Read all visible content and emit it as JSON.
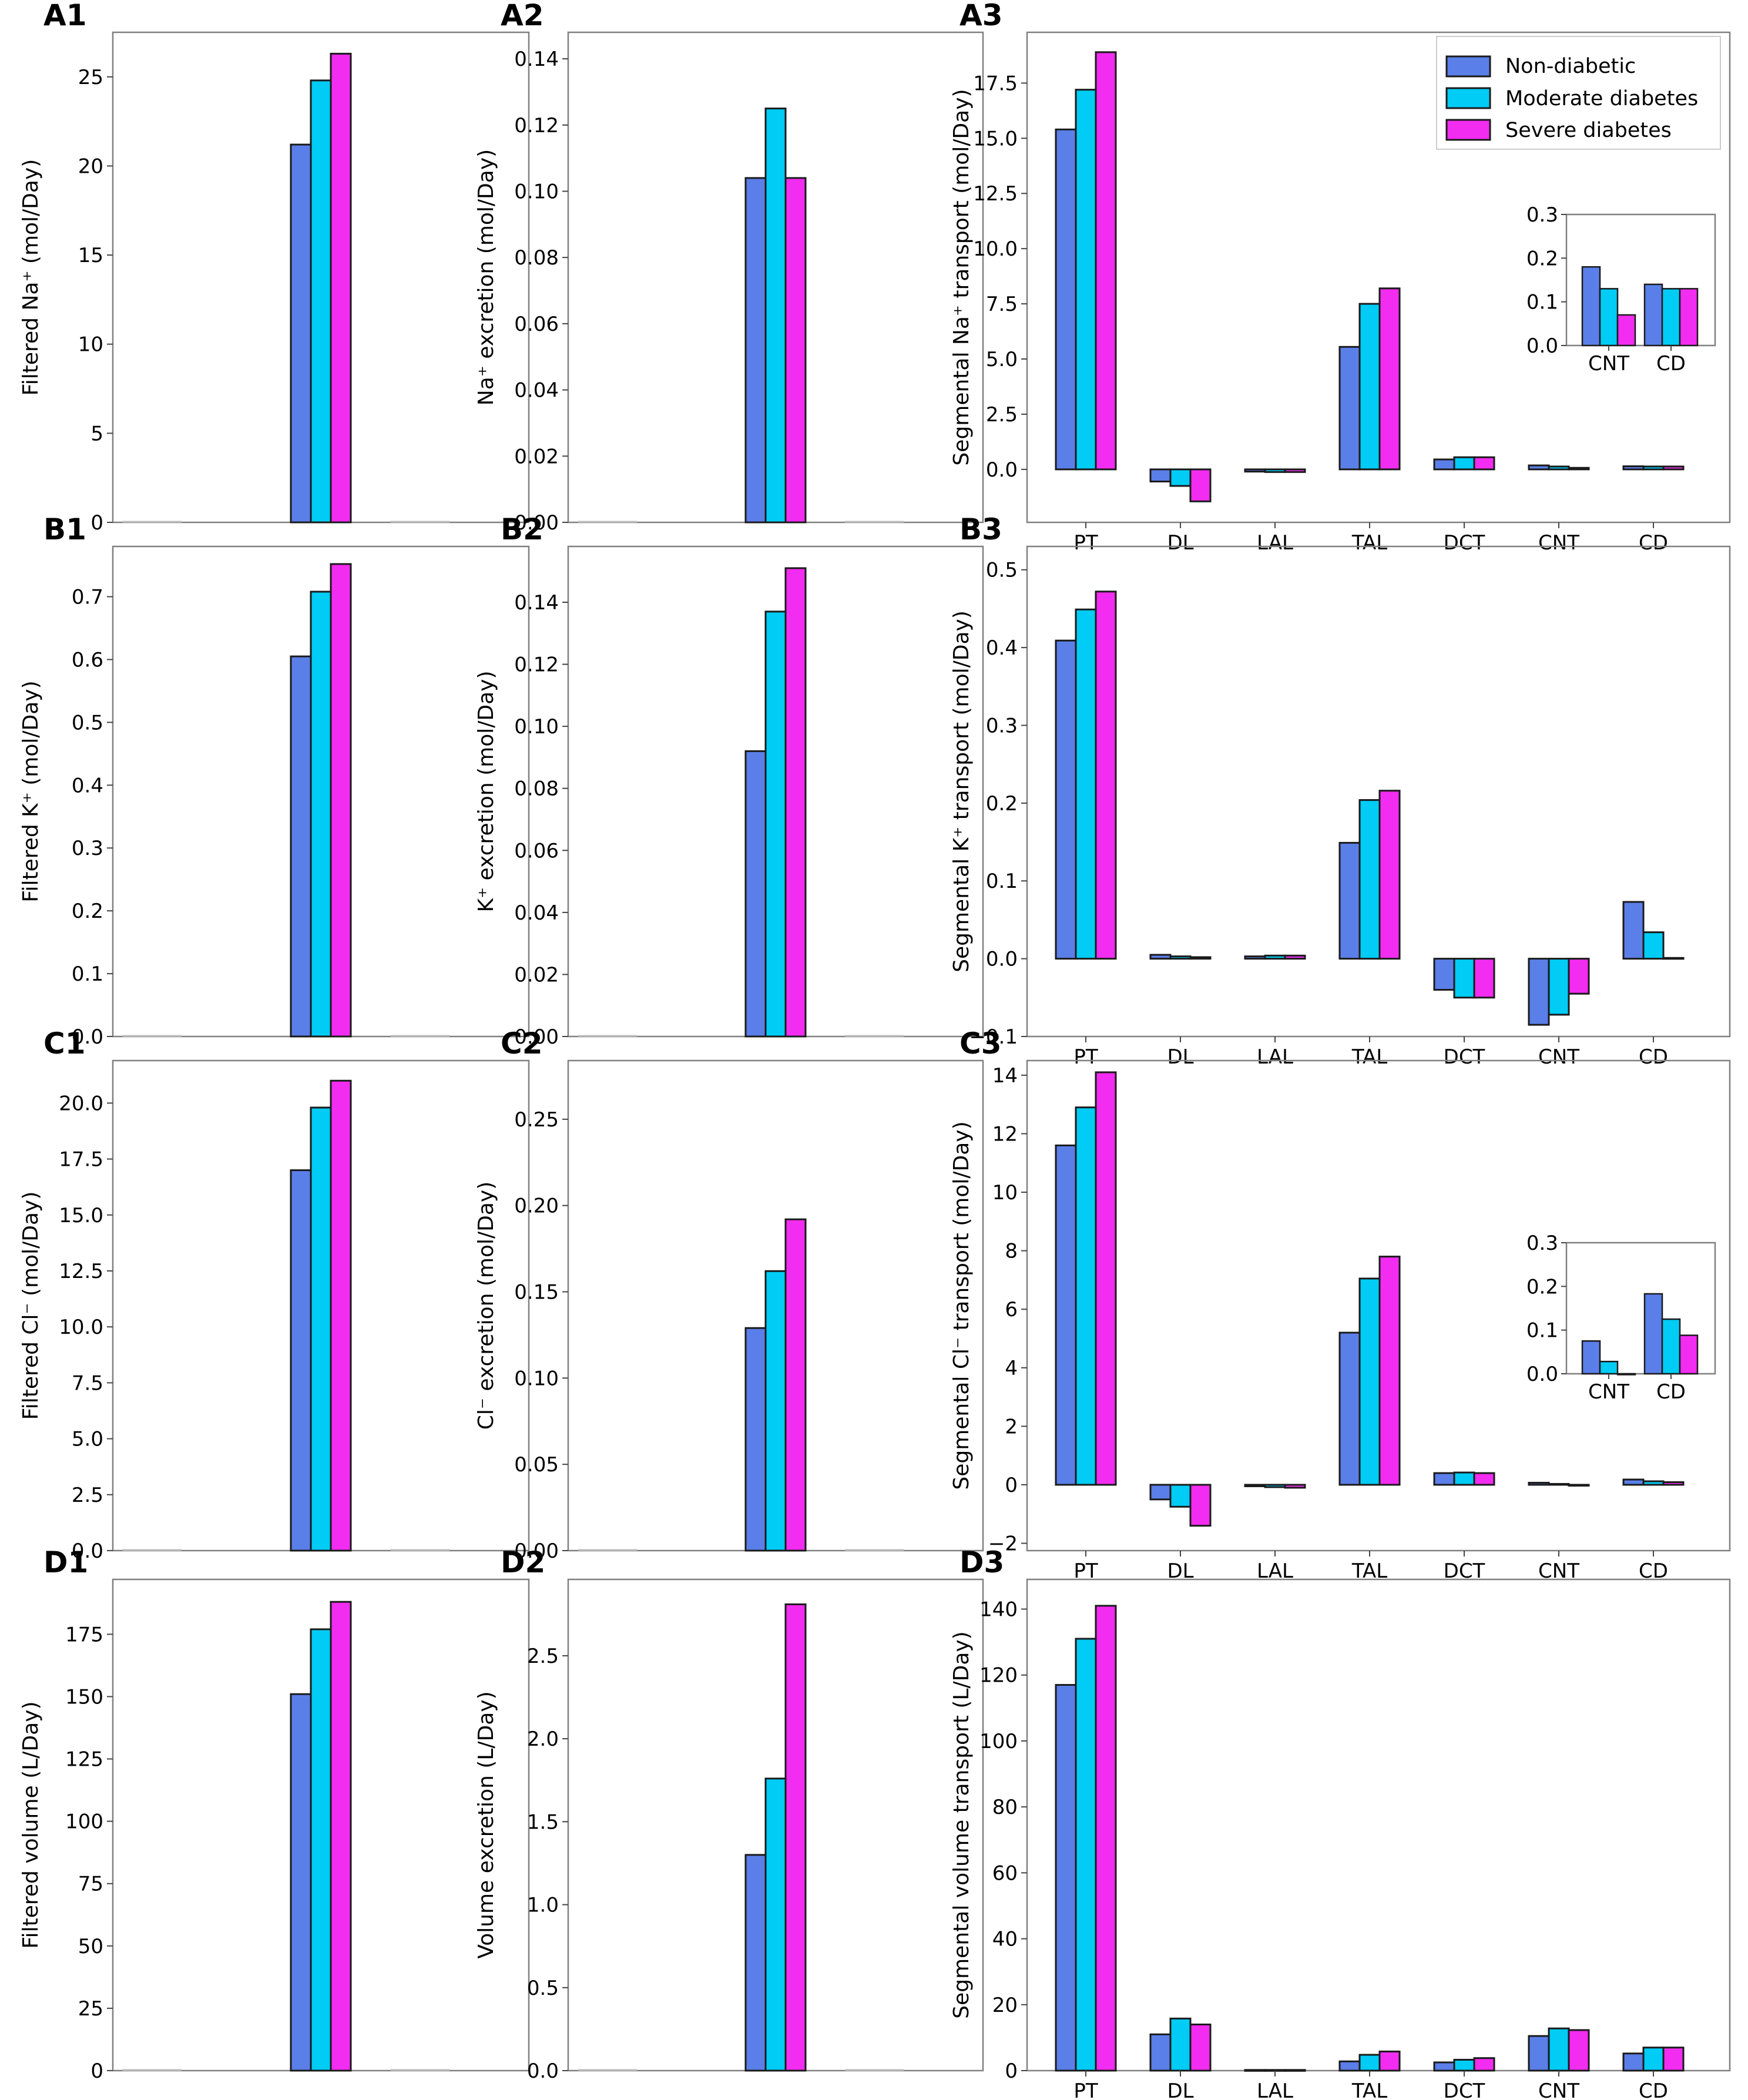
{
  "legend": {
    "position": "top-right of panel A3",
    "entries": [
      "Non-diabetic",
      "Moderate diabetes",
      "Severe diabetes"
    ]
  },
  "colors": {
    "non_diabetic": "#5b7fe8",
    "moderate": "#00ccf5",
    "severe": "#f22cf0",
    "axis": "#808080",
    "edge": "#1a1a1a"
  },
  "segments": [
    "PT",
    "DL",
    "LAL",
    "TAL",
    "DCT",
    "CNT",
    "CD"
  ],
  "chart_data": [
    {
      "id": "A1",
      "panel_label": "A1",
      "type": "bar",
      "ylabel": "Filtered Na⁺ (mol/Day)",
      "ylim": [
        0,
        27.5
      ],
      "yticks": [
        "0",
        "5",
        "10",
        "15",
        "20",
        "25"
      ],
      "ytick_values": [
        0,
        5,
        10,
        15,
        20,
        25
      ],
      "series": [
        {
          "name": "Non-diabetic",
          "values": [
            21.2
          ]
        },
        {
          "name": "Moderate diabetes",
          "values": [
            24.8
          ]
        },
        {
          "name": "Severe diabetes",
          "values": [
            26.3
          ]
        }
      ]
    },
    {
      "id": "A2",
      "panel_label": "A2",
      "type": "bar",
      "ylabel": "Na⁺ excretion (mol/Day)",
      "ylim": [
        0,
        0.148
      ],
      "yticks": [
        "0.00",
        "0.02",
        "0.04",
        "0.06",
        "0.08",
        "0.10",
        "0.12",
        "0.14"
      ],
      "ytick_values": [
        0,
        0.02,
        0.04,
        0.06,
        0.08,
        0.1,
        0.12,
        0.14
      ],
      "series": [
        {
          "name": "Non-diabetic",
          "values": [
            0.104
          ]
        },
        {
          "name": "Moderate diabetes",
          "values": [
            0.125
          ]
        },
        {
          "name": "Severe diabetes",
          "values": [
            0.104
          ]
        }
      ]
    },
    {
      "id": "A3",
      "panel_label": "A3",
      "type": "bar",
      "ylabel": "Segmental Na⁺ transport (mol/Day)",
      "ylim": [
        -2.4,
        19.8
      ],
      "yticks": [
        "0.0",
        "2.5",
        "5.0",
        "7.5",
        "10.0",
        "12.5",
        "15.0",
        "17.5"
      ],
      "ytick_values": [
        0,
        2.5,
        5,
        7.5,
        10,
        12.5,
        15,
        17.5
      ],
      "categories": [
        "PT",
        "DL",
        "LAL",
        "TAL",
        "DCT",
        "CNT",
        "CD"
      ],
      "series": [
        {
          "name": "Non-diabetic",
          "values": [
            15.4,
            -0.55,
            -0.1,
            5.55,
            0.45,
            0.18,
            0.14
          ]
        },
        {
          "name": "Moderate diabetes",
          "values": [
            17.2,
            -0.75,
            -0.12,
            7.5,
            0.55,
            0.13,
            0.13
          ]
        },
        {
          "name": "Severe diabetes",
          "values": [
            18.9,
            -1.45,
            -0.12,
            8.2,
            0.55,
            0.07,
            0.13
          ]
        }
      ],
      "inset": {
        "categories": [
          "CNT",
          "CD"
        ],
        "ylim": [
          0,
          0.3
        ],
        "yticks": [
          "0.0",
          "0.1",
          "0.2",
          "0.3"
        ],
        "ytick_values": [
          0,
          0.1,
          0.2,
          0.3
        ],
        "series": [
          {
            "name": "Non-diabetic",
            "values": [
              0.18,
              0.14
            ]
          },
          {
            "name": "Moderate diabetes",
            "values": [
              0.13,
              0.13
            ]
          },
          {
            "name": "Severe diabetes",
            "values": [
              0.07,
              0.13
            ]
          }
        ]
      }
    },
    {
      "id": "B1",
      "panel_label": "B1",
      "type": "bar",
      "ylabel": "Filtered K⁺ (mol/Day)",
      "ylim": [
        0,
        0.78
      ],
      "yticks": [
        "0.0",
        "0.1",
        "0.2",
        "0.3",
        "0.4",
        "0.5",
        "0.6",
        "0.7"
      ],
      "ytick_values": [
        0,
        0.1,
        0.2,
        0.3,
        0.4,
        0.5,
        0.6,
        0.7
      ],
      "series": [
        {
          "name": "Non-diabetic",
          "values": [
            0.605
          ]
        },
        {
          "name": "Moderate diabetes",
          "values": [
            0.708
          ]
        },
        {
          "name": "Severe diabetes",
          "values": [
            0.752
          ]
        }
      ]
    },
    {
      "id": "B2",
      "panel_label": "B2",
      "type": "bar",
      "ylabel": "K⁺ excretion (mol/Day)",
      "ylim": [
        0,
        0.158
      ],
      "yticks": [
        "0.00",
        "0.02",
        "0.04",
        "0.06",
        "0.08",
        "0.10",
        "0.12",
        "0.14"
      ],
      "ytick_values": [
        0,
        0.02,
        0.04,
        0.06,
        0.08,
        0.1,
        0.12,
        0.14
      ],
      "series": [
        {
          "name": "Non-diabetic",
          "values": [
            0.092
          ]
        },
        {
          "name": "Moderate diabetes",
          "values": [
            0.137
          ]
        },
        {
          "name": "Severe diabetes",
          "values": [
            0.151
          ]
        }
      ]
    },
    {
      "id": "B3",
      "panel_label": "B3",
      "type": "bar",
      "ylabel": "Segmental K⁺ transport (mol/Day)",
      "ylim": [
        -0.1,
        0.53
      ],
      "yticks": [
        "−0.1",
        "0.0",
        "0.1",
        "0.2",
        "0.3",
        "0.4",
        "0.5"
      ],
      "ytick_values": [
        -0.1,
        0,
        0.1,
        0.2,
        0.3,
        0.4,
        0.5
      ],
      "categories": [
        "PT",
        "DL",
        "LAL",
        "TAL",
        "DCT",
        "CNT",
        "CD"
      ],
      "series": [
        {
          "name": "Non-diabetic",
          "values": [
            0.409,
            0.005,
            0.003,
            0.149,
            -0.04,
            -0.085,
            0.073
          ]
        },
        {
          "name": "Moderate diabetes",
          "values": [
            0.449,
            0.003,
            0.004,
            0.204,
            -0.05,
            -0.072,
            0.034
          ]
        },
        {
          "name": "Severe diabetes",
          "values": [
            0.472,
            0.002,
            0.004,
            0.216,
            -0.05,
            -0.045,
            0.001
          ]
        }
      ]
    },
    {
      "id": "C1",
      "panel_label": "C1",
      "type": "bar",
      "ylabel": "Filtered Cl⁻ (mol/Day)",
      "ylim": [
        0,
        21.9
      ],
      "yticks": [
        "0.0",
        "2.5",
        "5.0",
        "7.5",
        "10.0",
        "12.5",
        "15.0",
        "17.5",
        "20.0"
      ],
      "ytick_values": [
        0,
        2.5,
        5,
        7.5,
        10,
        12.5,
        15,
        17.5,
        20
      ],
      "series": [
        {
          "name": "Non-diabetic",
          "values": [
            17.0
          ]
        },
        {
          "name": "Moderate diabetes",
          "values": [
            19.8
          ]
        },
        {
          "name": "Severe diabetes",
          "values": [
            21.0
          ]
        }
      ]
    },
    {
      "id": "C2",
      "panel_label": "C2",
      "type": "bar",
      "ylabel": "Cl⁻ excretion (mol/Day)",
      "ylim": [
        0,
        0.284
      ],
      "yticks": [
        "0.00",
        "0.05",
        "0.10",
        "0.15",
        "0.20",
        "0.25"
      ],
      "ytick_values": [
        0,
        0.05,
        0.1,
        0.15,
        0.2,
        0.25
      ],
      "series": [
        {
          "name": "Non-diabetic",
          "values": [
            0.129
          ]
        },
        {
          "name": "Moderate diabetes",
          "values": [
            0.162
          ]
        },
        {
          "name": "Severe diabetes",
          "values": [
            0.192
          ]
        }
      ]
    },
    {
      "id": "C3",
      "panel_label": "C3",
      "type": "bar",
      "ylabel": "Segmental Cl⁻ transport (mol/Day)",
      "ylim": [
        -2.25,
        14.5
      ],
      "yticks": [
        "−2",
        "0",
        "2",
        "4",
        "6",
        "8",
        "10",
        "12",
        "14"
      ],
      "ytick_values": [
        -2,
        0,
        2,
        4,
        6,
        8,
        10,
        12,
        14
      ],
      "categories": [
        "PT",
        "DL",
        "LAL",
        "TAL",
        "DCT",
        "CNT",
        "CD"
      ],
      "series": [
        {
          "name": "Non-diabetic",
          "values": [
            11.6,
            -0.5,
            -0.05,
            5.2,
            0.4,
            0.07,
            0.18
          ]
        },
        {
          "name": "Moderate diabetes",
          "values": [
            12.9,
            -0.75,
            -0.08,
            7.05,
            0.42,
            0.03,
            0.12
          ]
        },
        {
          "name": "Severe diabetes",
          "values": [
            14.1,
            -1.4,
            -0.1,
            7.8,
            0.4,
            0.0,
            0.09
          ]
        }
      ],
      "inset": {
        "categories": [
          "CNT",
          "CD"
        ],
        "ylim": [
          0,
          0.3
        ],
        "yticks": [
          "0.0",
          "0.1",
          "0.2",
          "0.3"
        ],
        "ytick_values": [
          0,
          0.1,
          0.2,
          0.3
        ],
        "series": [
          {
            "name": "Non-diabetic",
            "values": [
              0.075,
              0.183
            ]
          },
          {
            "name": "Moderate diabetes",
            "values": [
              0.028,
              0.125
            ]
          },
          {
            "name": "Severe diabetes",
            "values": [
              0.0,
              0.088
            ]
          }
        ]
      }
    },
    {
      "id": "D1",
      "panel_label": "D1",
      "type": "bar",
      "ylabel": "Filtered volume (L/Day)",
      "ylim": [
        0,
        197
      ],
      "yticks": [
        "0",
        "25",
        "50",
        "75",
        "100",
        "125",
        "150",
        "175"
      ],
      "ytick_values": [
        0,
        25,
        50,
        75,
        100,
        125,
        150,
        175
      ],
      "series": [
        {
          "name": "Non-diabetic",
          "values": [
            151
          ]
        },
        {
          "name": "Moderate diabetes",
          "values": [
            177
          ]
        },
        {
          "name": "Severe diabetes",
          "values": [
            188
          ]
        }
      ]
    },
    {
      "id": "D2",
      "panel_label": "D2",
      "type": "bar",
      "ylabel": "Volume excretion (L/Day)",
      "ylim": [
        0,
        2.96
      ],
      "yticks": [
        "0.0",
        "0.5",
        "1.0",
        "1.5",
        "2.0",
        "2.5"
      ],
      "ytick_values": [
        0,
        0.5,
        1.0,
        1.5,
        2.0,
        2.5
      ],
      "series": [
        {
          "name": "Non-diabetic",
          "values": [
            1.3
          ]
        },
        {
          "name": "Moderate diabetes",
          "values": [
            1.76
          ]
        },
        {
          "name": "Severe diabetes",
          "values": [
            2.81
          ]
        }
      ]
    },
    {
      "id": "D3",
      "panel_label": "D3",
      "type": "bar",
      "ylabel": "Segmental volume transport (L/Day)",
      "ylim": [
        0,
        149
      ],
      "yticks": [
        "0",
        "20",
        "40",
        "60",
        "80",
        "100",
        "120",
        "140"
      ],
      "ytick_values": [
        0,
        20,
        40,
        60,
        80,
        100,
        120,
        140
      ],
      "categories": [
        "PT",
        "DL",
        "LAL",
        "TAL",
        "DCT",
        "CNT",
        "CD"
      ],
      "series": [
        {
          "name": "Non-diabetic",
          "values": [
            117,
            11,
            0.2,
            2.8,
            2.5,
            10.5,
            5.2
          ]
        },
        {
          "name": "Moderate diabetes",
          "values": [
            131,
            15.8,
            0.2,
            4.8,
            3.3,
            12.8,
            7.0
          ]
        },
        {
          "name": "Severe diabetes",
          "values": [
            141,
            14,
            0.2,
            5.8,
            3.8,
            12.3,
            7.0
          ]
        }
      ]
    }
  ]
}
